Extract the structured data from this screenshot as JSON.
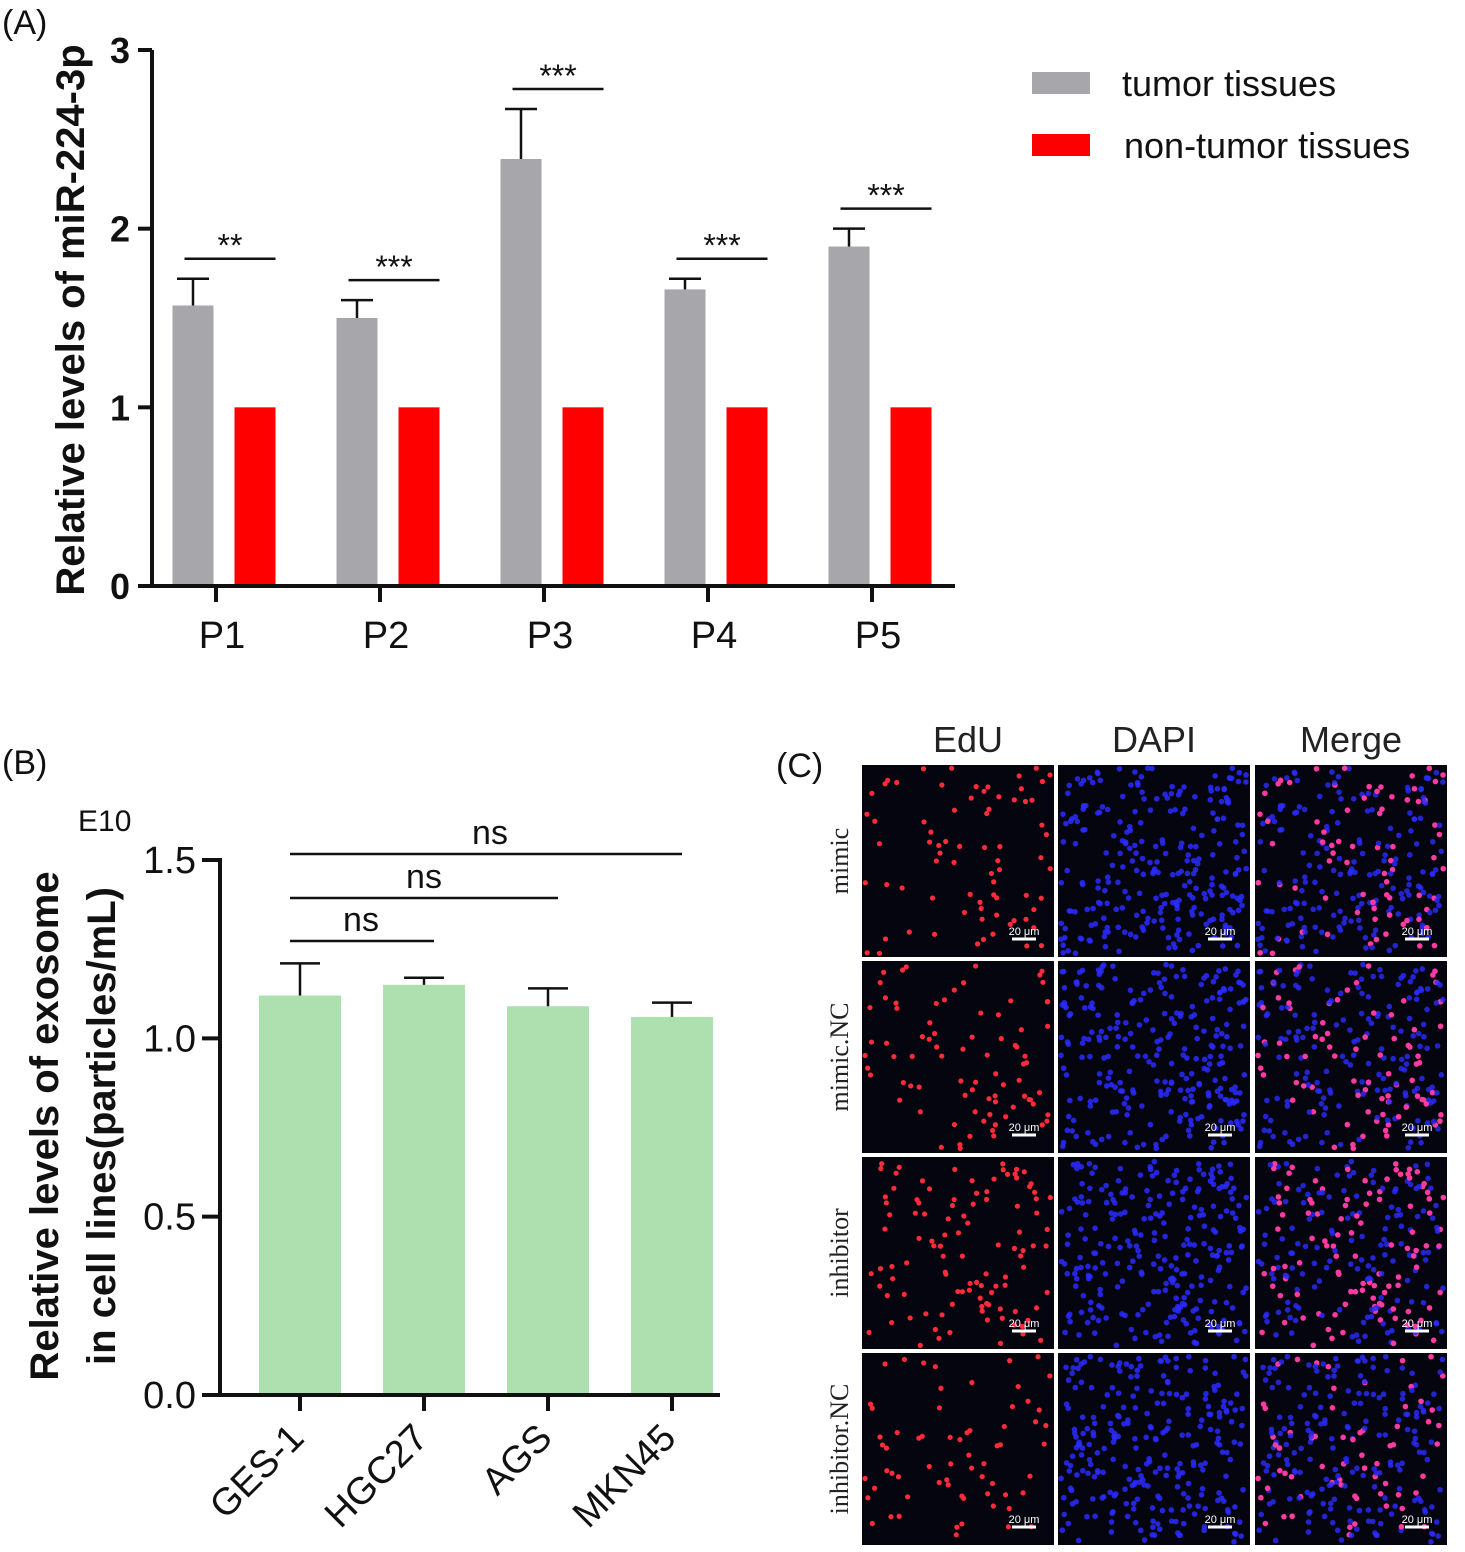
{
  "chart_data": [
    {
      "panel": "(A)",
      "type": "bar",
      "categories": [
        "P1",
        "P2",
        "P3",
        "P4",
        "P5"
      ],
      "ylabel": "Relative levels of miR-224-3p",
      "ylim": [
        0,
        3
      ],
      "yticks": [
        "0",
        "1",
        "2",
        "3"
      ],
      "series": [
        {
          "name": "tumor tissues",
          "color": "#a7a7ab",
          "values": [
            1.57,
            1.5,
            2.39,
            1.66,
            1.9
          ],
          "errors": [
            0.15,
            0.1,
            0.28,
            0.06,
            0.1
          ]
        },
        {
          "name": "non-tumor tissues",
          "color": "#ff0000",
          "values": [
            1.0,
            1.0,
            1.0,
            1.0,
            1.0
          ]
        }
      ],
      "significance": [
        "**",
        "***",
        "***",
        "***",
        "***"
      ],
      "legend": [
        "tumor tissues",
        "non-tumor tissues"
      ]
    },
    {
      "panel": "(B)",
      "type": "bar",
      "categories": [
        "GES-1",
        "HGC27",
        "AGS",
        "MKN45"
      ],
      "ylabel_line1": "Relative levels of exosome",
      "ylabel_line2": "in cell lines(particles/mL)",
      "axis_multiplier": "E10",
      "ylim": [
        0,
        1.5
      ],
      "yticks": [
        "0.0",
        "0.5",
        "1.0",
        "1.5"
      ],
      "series": [
        {
          "name": "exosome",
          "color": "#aedfaf",
          "values": [
            1.12,
            1.15,
            1.09,
            1.06
          ],
          "errors": [
            0.09,
            0.02,
            0.05,
            0.04
          ]
        }
      ],
      "comparisons": [
        {
          "from": "GES-1",
          "to": "HGC27",
          "label": "ns"
        },
        {
          "from": "GES-1",
          "to": "AGS",
          "label": "ns"
        },
        {
          "from": "GES-1",
          "to": "MKN45",
          "label": "ns"
        }
      ]
    }
  ],
  "panel_c": {
    "label": "(C)",
    "columns": [
      "EdU",
      "DAPI",
      "Merge"
    ],
    "rows": [
      "mimic",
      "mimic.NC",
      "inhibitor",
      "inhibitor.NC"
    ],
    "scale_bar": "20 μm",
    "colors": {
      "edu_cell": "#ff2a3a",
      "dapi_cell": "#2a2cff",
      "merge_cell": "#ff3aa0",
      "background": "#050510"
    }
  }
}
